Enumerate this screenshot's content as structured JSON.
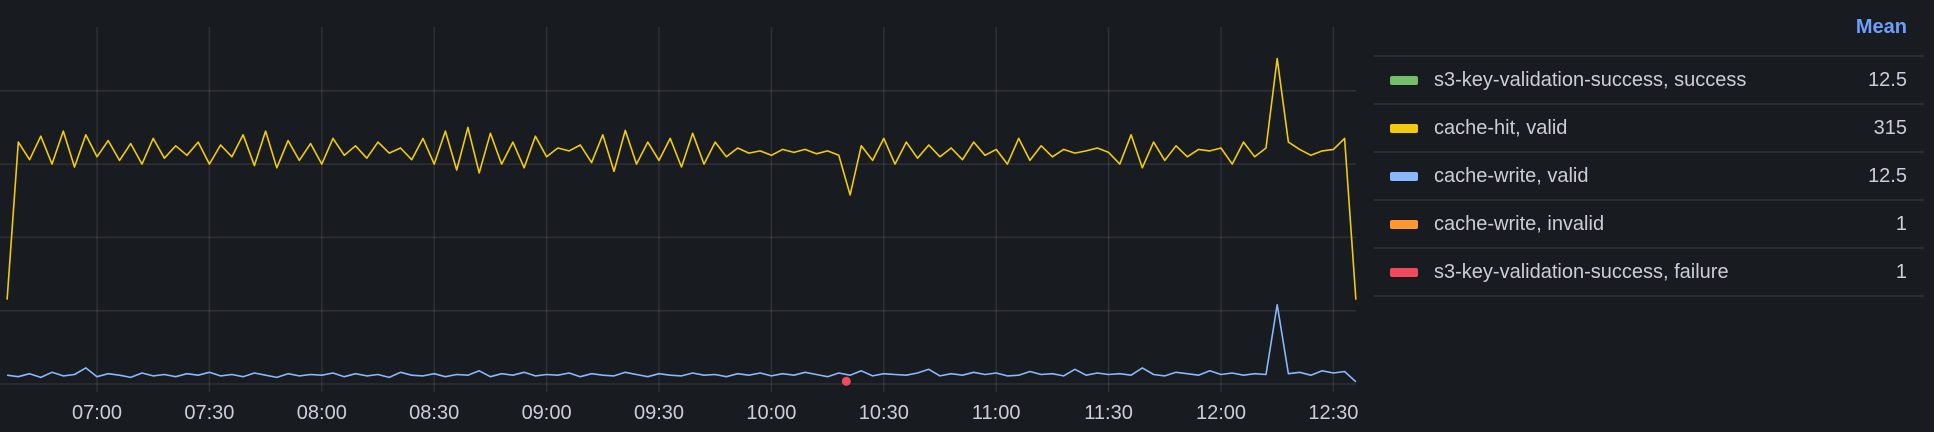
{
  "chart_data": {
    "type": "line",
    "title": "",
    "xlabel": "",
    "ylabel": "",
    "x_ticks": [
      "07:00",
      "07:30",
      "08:00",
      "08:30",
      "09:00",
      "09:30",
      "10:00",
      "10:30",
      "11:00",
      "11:30",
      "12:00",
      "12:30"
    ],
    "x_range": [
      "06:36",
      "12:36"
    ],
    "x_step_minutes": 3,
    "ylim": [
      0,
      489
    ],
    "y_gridlines": [
      0,
      100,
      200,
      300,
      400
    ],
    "grid": true,
    "legend_placement": "right",
    "legend_stat_header": "Mean",
    "series": [
      {
        "name": "s3-key-validation-success, success",
        "color": "#73BF69",
        "mean": "12.5",
        "values": []
      },
      {
        "name": "cache-hit, valid",
        "color": "#F2CC0C",
        "mean": "315",
        "values": [
          115,
          330,
          306,
          338,
          300,
          345,
          296,
          340,
          310,
          332,
          305,
          328,
          300,
          335,
          308,
          325,
          312,
          330,
          300,
          326,
          310,
          340,
          298,
          345,
          295,
          332,
          305,
          328,
          300,
          335,
          312,
          325,
          308,
          330,
          315,
          322,
          306,
          335,
          300,
          345,
          292,
          350,
          288,
          342,
          300,
          330,
          295,
          338,
          310,
          322,
          318,
          326,
          302,
          340,
          290,
          346,
          300,
          330,
          305,
          335,
          296,
          342,
          300,
          330,
          310,
          322,
          315,
          318,
          312,
          320,
          316,
          320,
          314,
          318,
          312,
          258,
          325,
          305,
          335,
          300,
          330,
          308,
          326,
          310,
          322,
          306,
          330,
          312,
          320,
          300,
          335,
          305,
          325,
          310,
          320,
          315,
          318,
          322,
          316,
          300,
          340,
          295,
          330,
          305,
          325,
          310,
          320,
          318,
          322,
          300,
          330,
          310,
          322,
          444,
          330,
          320,
          312,
          318,
          320,
          335,
          115
        ]
      },
      {
        "name": "cache-write, valid",
        "color": "#8AB8FF",
        "mean": "12.5",
        "values": [
          12,
          10,
          14,
          9,
          16,
          11,
          13,
          22,
          10,
          14,
          12,
          9,
          15,
          11,
          13,
          10,
          14,
          12,
          16,
          11,
          13,
          10,
          15,
          12,
          9,
          14,
          11,
          13,
          12,
          15,
          10,
          14,
          11,
          13,
          9,
          16,
          12,
          11,
          14,
          10,
          13,
          12,
          18,
          10,
          14,
          12,
          16,
          11,
          13,
          12,
          15,
          10,
          14,
          12,
          11,
          16,
          13,
          10,
          14,
          12,
          11,
          15,
          12,
          13,
          10,
          14,
          12,
          15,
          11,
          14,
          12,
          16,
          13,
          10,
          15,
          12,
          18,
          11,
          14,
          13,
          12,
          15,
          20,
          11,
          14,
          12,
          16,
          13,
          15,
          11,
          12,
          17,
          13,
          14,
          11,
          20,
          12,
          15,
          13,
          14,
          12,
          22,
          13,
          11,
          16,
          14,
          12,
          18,
          13,
          15,
          12,
          14,
          13,
          108,
          14,
          16,
          12,
          18,
          15,
          17,
          3
        ]
      },
      {
        "name": "cache-write, invalid",
        "color": "#FF9830",
        "mean": "1",
        "values": []
      },
      {
        "name": "s3-key-validation-success, failure",
        "color": "#F2495C",
        "mean": "1",
        "points": [
          {
            "x": "10:20",
            "y": 1
          }
        ]
      }
    ]
  }
}
